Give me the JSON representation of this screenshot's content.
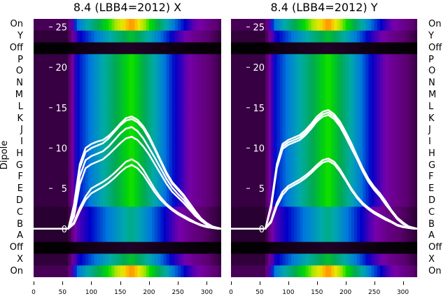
{
  "plots": [
    {
      "title": "8.4 (LBB4=2012) X",
      "ylabel": "Dipole"
    },
    {
      "title": "8.4 (LBB4=2012) Y"
    }
  ],
  "row_labels_left": [
    "On",
    "Y",
    "Off",
    "P",
    "O",
    "N",
    "M",
    "L",
    "K",
    "J",
    "I",
    "H",
    "G",
    "F",
    "E",
    "D",
    "C",
    "B",
    "A",
    "Off",
    "X",
    "On"
  ],
  "row_labels_right": [
    "On",
    "Y",
    "Off",
    "P",
    "O",
    "N",
    "M",
    "L",
    "K",
    "J",
    "I",
    "H",
    "G",
    "F",
    "E",
    "D",
    "C",
    "B",
    "A",
    "Off",
    "X",
    "On"
  ],
  "x_ticks": [
    "0",
    "50",
    "100",
    "150",
    "200",
    "250",
    "300"
  ],
  "y_ticks": [
    "0",
    "5",
    "10",
    "15",
    "20",
    "25"
  ],
  "colors": {
    "line": "#ffffff",
    "background": "#ffffff"
  },
  "chart_data": [
    {
      "type": "heatmap",
      "title": "8.4 (LBB4=2012) X",
      "ylabel": "Dipole",
      "xlim": [
        0,
        325
      ],
      "ylim": [
        -6,
        26
      ],
      "x_ticks": [
        0,
        50,
        100,
        150,
        200,
        250,
        300
      ],
      "y_ticks": [
        0,
        5,
        10,
        15,
        20,
        25
      ],
      "rows": [
        "On",
        "Y",
        "Off",
        "P",
        "O",
        "N",
        "M",
        "L",
        "K",
        "J",
        "I",
        "H",
        "G",
        "F",
        "E",
        "D",
        "C",
        "B",
        "A",
        "Off",
        "X",
        "On"
      ],
      "series": [
        {
          "x": [
            0,
            40,
            60,
            70,
            80,
            90,
            100,
            110,
            120,
            130,
            140,
            150,
            160,
            170,
            180,
            190,
            200,
            210,
            220,
            230,
            240,
            250,
            260,
            270,
            280,
            290,
            300,
            310,
            320,
            325
          ],
          "y": [
            0,
            0,
            0,
            3,
            8,
            10,
            10.5,
            10.8,
            11,
            11.5,
            12.2,
            13,
            13.7,
            13.9,
            13.5,
            12.7,
            11.5,
            10,
            8.5,
            7,
            5.8,
            5,
            4.2,
            3.2,
            2.2,
            1.3,
            0.7,
            0.3,
            0.1,
            0
          ]
        },
        {
          "x": [
            0,
            40,
            60,
            70,
            80,
            90,
            100,
            110,
            120,
            130,
            140,
            150,
            160,
            170,
            180,
            190,
            200,
            210,
            220,
            230,
            240,
            250,
            260,
            270,
            280,
            290,
            300,
            310,
            320,
            325
          ],
          "y": [
            0,
            0,
            0,
            2.5,
            7.5,
            9.5,
            10,
            10.3,
            10.6,
            11.2,
            12,
            12.8,
            13.4,
            13.6,
            13.2,
            12.4,
            11.2,
            9.8,
            8.3,
            6.8,
            5.6,
            4.8,
            4,
            3,
            2,
            1.2,
            0.6,
            0.2,
            0.1,
            0
          ]
        },
        {
          "x": [
            0,
            40,
            60,
            70,
            80,
            90,
            100,
            110,
            120,
            130,
            140,
            150,
            160,
            170,
            180,
            190,
            200,
            210,
            220,
            230,
            240,
            250,
            260,
            270,
            280,
            290,
            300,
            310,
            320,
            325
          ],
          "y": [
            0,
            0,
            0,
            2,
            6.5,
            8.5,
            9,
            9.3,
            9.6,
            10.2,
            11,
            11.8,
            12.4,
            12.6,
            12.1,
            11.2,
            10,
            8.8,
            7.5,
            6.2,
            5.1,
            4.3,
            3.6,
            2.7,
            1.8,
            1.1,
            0.5,
            0.2,
            0.1,
            0
          ]
        },
        {
          "x": [
            0,
            40,
            60,
            70,
            80,
            90,
            100,
            110,
            120,
            130,
            140,
            150,
            160,
            170,
            180,
            190,
            200,
            210,
            220,
            230,
            240,
            250,
            260,
            270,
            280,
            290,
            300,
            310,
            320,
            325
          ],
          "y": [
            0,
            0,
            0,
            1.5,
            5.5,
            7.5,
            8,
            8.3,
            8.6,
            9.2,
            9.9,
            10.6,
            11.2,
            11.4,
            11,
            10.2,
            9.2,
            8,
            6.8,
            5.6,
            4.6,
            3.9,
            3.2,
            2.4,
            1.6,
            1,
            0.5,
            0.2,
            0.1,
            0
          ]
        },
        {
          "x": [
            0,
            40,
            60,
            70,
            80,
            90,
            100,
            110,
            120,
            130,
            140,
            150,
            160,
            170,
            180,
            190,
            200,
            210,
            220,
            230,
            240,
            250,
            260,
            270,
            280,
            290,
            300,
            310,
            320,
            325
          ],
          "y": [
            0,
            0,
            0,
            0.8,
            2.6,
            4,
            5,
            5.4,
            5.8,
            6.3,
            6.9,
            7.6,
            8.3,
            8.6,
            8.2,
            7.3,
            6.1,
            4.9,
            3.9,
            3.1,
            2.5,
            2,
            1.6,
            1.2,
            0.8,
            0.5,
            0.3,
            0.1,
            0,
            0
          ]
        },
        {
          "x": [
            0,
            40,
            60,
            70,
            80,
            90,
            100,
            110,
            120,
            130,
            140,
            150,
            160,
            170,
            180,
            190,
            200,
            210,
            220,
            230,
            240,
            250,
            260,
            270,
            280,
            290,
            300,
            310,
            320,
            325
          ],
          "y": [
            0,
            0,
            0,
            0.6,
            2.2,
            3.6,
            4.4,
            4.8,
            5.2,
            5.7,
            6.3,
            7,
            7.6,
            7.9,
            7.5,
            6.7,
            5.6,
            4.5,
            3.6,
            2.9,
            2.3,
            1.8,
            1.4,
            1,
            0.7,
            0.4,
            0.2,
            0.1,
            0,
            0
          ]
        }
      ]
    },
    {
      "type": "heatmap",
      "title": "8.4 (LBB4=2012) Y",
      "xlim": [
        0,
        325
      ],
      "ylim": [
        -6,
        26
      ],
      "x_ticks": [
        0,
        50,
        100,
        150,
        200,
        250,
        300
      ],
      "y_ticks": [
        0,
        5,
        10,
        15,
        20,
        25
      ],
      "rows": [
        "On",
        "Y",
        "Off",
        "P",
        "O",
        "N",
        "M",
        "L",
        "K",
        "J",
        "I",
        "H",
        "G",
        "F",
        "E",
        "D",
        "C",
        "B",
        "A",
        "Off",
        "X",
        "On"
      ],
      "series": [
        {
          "x": [
            0,
            40,
            60,
            70,
            80,
            90,
            100,
            110,
            120,
            130,
            140,
            150,
            160,
            170,
            180,
            190,
            200,
            210,
            220,
            230,
            240,
            250,
            260,
            270,
            280,
            290,
            300,
            310,
            320,
            325
          ],
          "y": [
            0,
            0,
            0,
            3,
            8,
            10.5,
            11,
            11.3,
            11.6,
            12.2,
            13,
            13.9,
            14.5,
            14.7,
            14.2,
            13.3,
            12,
            10.6,
            9,
            7.5,
            6.2,
            5.2,
            4.4,
            3.4,
            2.3,
            1.4,
            0.8,
            0.3,
            0.1,
            0
          ]
        },
        {
          "x": [
            0,
            40,
            60,
            70,
            80,
            90,
            100,
            110,
            120,
            130,
            140,
            150,
            160,
            170,
            180,
            190,
            200,
            210,
            220,
            230,
            240,
            250,
            260,
            270,
            280,
            290,
            300,
            310,
            320,
            325
          ],
          "y": [
            0,
            0,
            0,
            2.8,
            7.8,
            10.2,
            10.7,
            11,
            11.3,
            11.9,
            12.7,
            13.6,
            14.2,
            14.4,
            13.9,
            13,
            11.7,
            10.3,
            8.8,
            7.3,
            6,
            5,
            4.2,
            3.2,
            2.2,
            1.3,
            0.7,
            0.3,
            0.1,
            0
          ]
        },
        {
          "x": [
            0,
            40,
            60,
            70,
            80,
            90,
            100,
            110,
            120,
            130,
            140,
            150,
            160,
            170,
            180,
            190,
            200,
            210,
            220,
            230,
            240,
            250,
            260,
            270,
            280,
            290,
            300,
            310,
            320,
            325
          ],
          "y": [
            0,
            0,
            0,
            2.6,
            7.5,
            9.9,
            10.4,
            10.7,
            11,
            11.6,
            12.4,
            13.3,
            13.9,
            14.1,
            13.6,
            12.7,
            11.4,
            10,
            8.6,
            7.1,
            5.8,
            4.8,
            4,
            3,
            2.1,
            1.2,
            0.6,
            0.2,
            0.1,
            0
          ]
        },
        {
          "x": [
            0,
            40,
            60,
            70,
            80,
            90,
            100,
            110,
            120,
            130,
            140,
            150,
            160,
            170,
            180,
            190,
            200,
            210,
            220,
            230,
            240,
            250,
            260,
            270,
            280,
            290,
            300,
            310,
            320,
            325
          ],
          "y": [
            0,
            0,
            0,
            1,
            3.2,
            4.6,
            5.3,
            5.7,
            6.1,
            6.6,
            7.2,
            7.9,
            8.5,
            8.7,
            8.3,
            7.4,
            6.2,
            5,
            4,
            3.2,
            2.6,
            2.1,
            1.7,
            1.3,
            0.9,
            0.5,
            0.3,
            0.1,
            0,
            0
          ]
        },
        {
          "x": [
            0,
            40,
            60,
            70,
            80,
            90,
            100,
            110,
            120,
            130,
            140,
            150,
            160,
            170,
            180,
            190,
            200,
            210,
            220,
            230,
            240,
            250,
            260,
            270,
            280,
            290,
            300,
            310,
            320,
            325
          ],
          "y": [
            0,
            0,
            0,
            0.8,
            2.8,
            4.2,
            5,
            5.4,
            5.8,
            6.3,
            6.9,
            7.6,
            8.2,
            8.4,
            8,
            7.1,
            6,
            4.8,
            3.8,
            3,
            2.4,
            1.9,
            1.5,
            1.1,
            0.8,
            0.4,
            0.2,
            0.1,
            0,
            0
          ]
        }
      ]
    }
  ]
}
